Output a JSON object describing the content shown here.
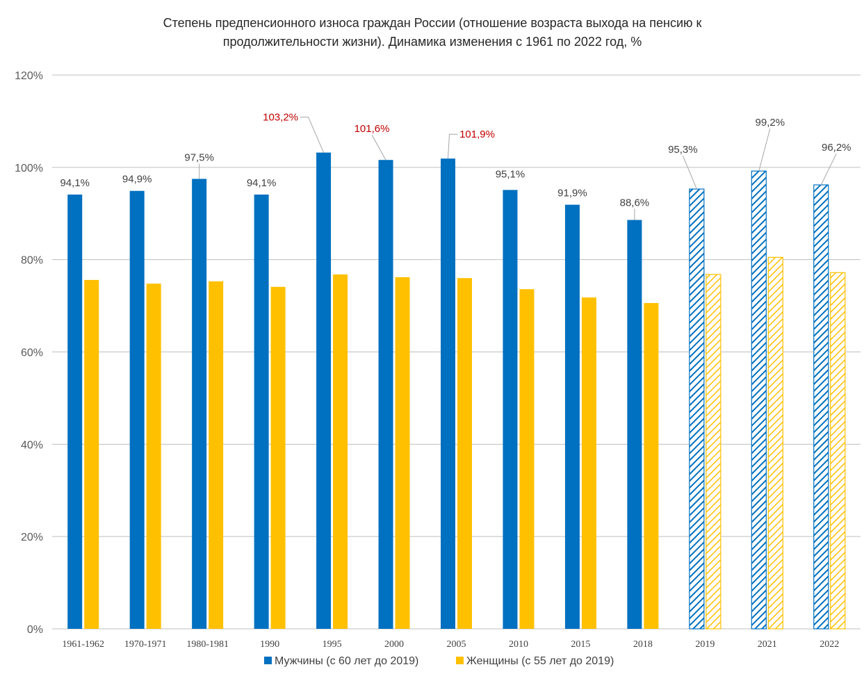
{
  "chart_data": {
    "type": "bar",
    "title": [
      "Степень предпенсионного износа граждан России (отношение возраста выхода на пенсию к",
      "продолжительности жизни). Динамика изменения с 1961 по 2022 год, %"
    ],
    "xlabel": "",
    "ylabel": "",
    "ylim": [
      0,
      120
    ],
    "y_ticks": [
      "0%",
      "20%",
      "40%",
      "60%",
      "80%",
      "100%",
      "120%"
    ],
    "grid": true,
    "legend_position": "bottom",
    "categories": [
      "1961-1962",
      "1970-1971",
      "1980-1981",
      "1990",
      "1995",
      "2000",
      "2005",
      "2010",
      "2015",
      "2018",
      "2019",
      "2021",
      "2022"
    ],
    "hatched_from_category": "2019",
    "series": [
      {
        "name": "Мужчины  (с 60 лет до 2019)",
        "color": "#0070c0",
        "values": [
          94.1,
          94.9,
          97.5,
          94.1,
          103.2,
          101.6,
          101.9,
          95.1,
          91.9,
          88.6,
          95.3,
          99.2,
          96.2
        ],
        "labels": [
          "94,1%",
          "94,9%",
          "97,5%",
          "94,1%",
          "103,2%",
          "101,6%",
          "101,9%",
          "95,1%",
          "91,9%",
          "88,6%",
          "95,3%",
          "99,2%",
          "96,2%"
        ],
        "label_colors": [
          "#404040",
          "#404040",
          "#404040",
          "#404040",
          "#c00000",
          "#c00000",
          "#c00000",
          "#404040",
          "#404040",
          "#404040",
          "#404040",
          "#404040",
          "#404040"
        ]
      },
      {
        "name": "Женщины (с 55 лет до 2019)",
        "color": "#ffc000",
        "values": [
          75.6,
          74.8,
          75.3,
          74.1,
          76.8,
          76.2,
          76.0,
          73.6,
          71.8,
          70.6,
          76.8,
          80.5,
          77.2
        ]
      }
    ]
  }
}
